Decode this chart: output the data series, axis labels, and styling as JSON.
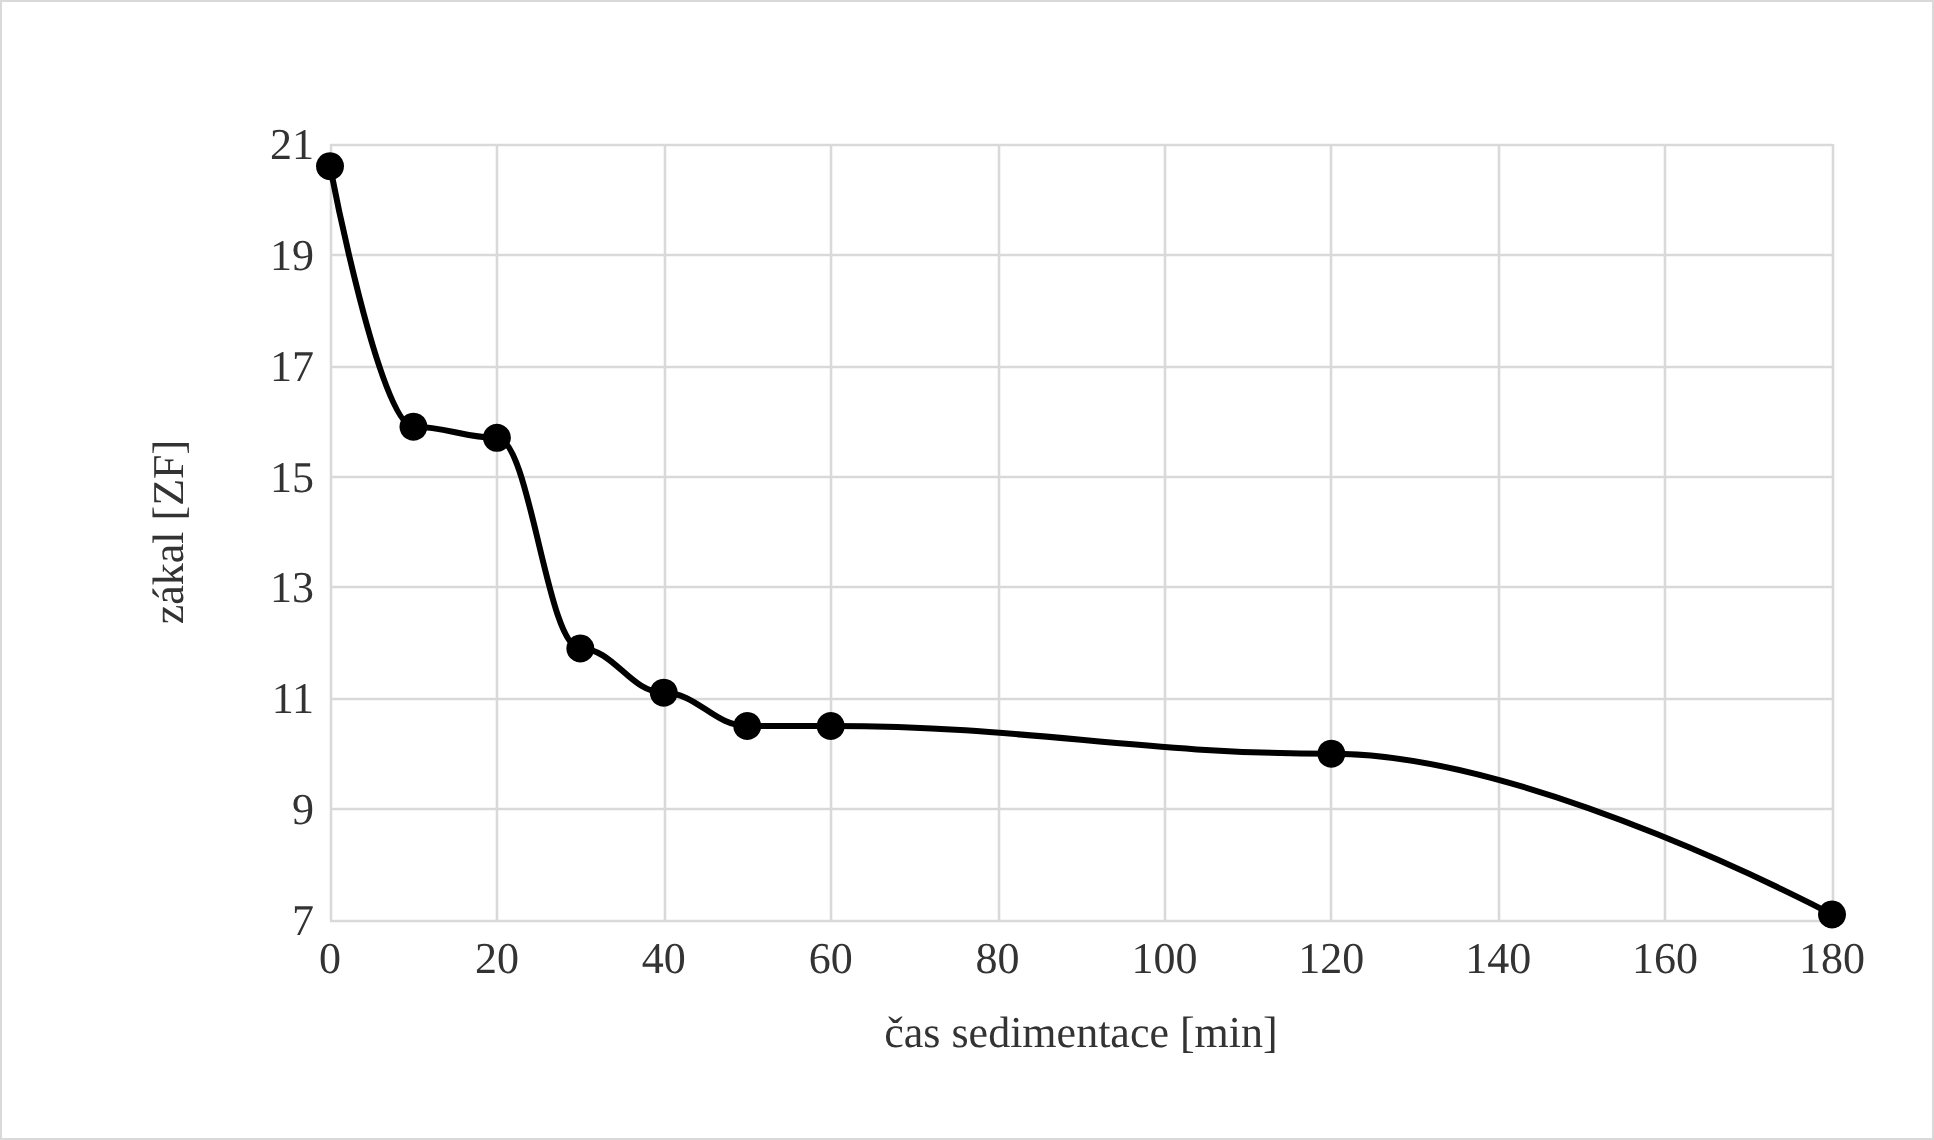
{
  "chart_data": {
    "type": "line",
    "xlabel": "čas sedimentace [min]",
    "ylabel": "zákal [ZF]",
    "x": [
      0,
      10,
      20,
      30,
      40,
      50,
      60,
      120,
      180
    ],
    "series": [
      {
        "color": "#000000",
        "values": [
          20.6,
          15.9,
          15.7,
          11.9,
          11.1,
          10.5,
          10.5,
          10.0,
          7.1
        ]
      }
    ],
    "xlim": [
      0,
      180
    ],
    "xticks": [
      0,
      20,
      40,
      60,
      80,
      100,
      120,
      140,
      160,
      180
    ],
    "ylim": [
      7,
      21
    ],
    "yticks": [
      7,
      9,
      11,
      13,
      15,
      17,
      19,
      21
    ],
    "grid": true,
    "marker": "circle",
    "line_style": "solid"
  }
}
